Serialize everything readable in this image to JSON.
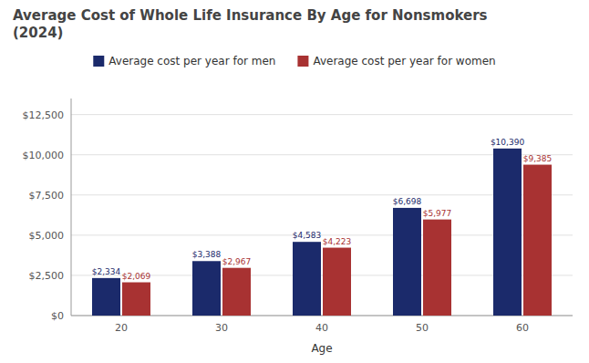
{
  "chart_data": {
    "type": "bar",
    "title": "Average Cost of Whole Life Insurance By Age for Nonsmokers\n(2024)",
    "x_label": "Age",
    "categories": [
      "20",
      "30",
      "40",
      "50",
      "60"
    ],
    "series": [
      {
        "name": "Average cost per year for men",
        "color": "#1b2a6b",
        "values": [
          2334,
          3388,
          4583,
          6698,
          10390
        ],
        "value_labels": [
          "$2,334",
          "$3,388",
          "$4,583",
          "$6,698",
          "$10,390"
        ]
      },
      {
        "name": "Average cost per year for women",
        "color": "#a83232",
        "values": [
          2069,
          2967,
          4223,
          5977,
          9385
        ],
        "value_labels": [
          "$2,069",
          "$2,967",
          "$4,223",
          "$5,977",
          "$9,385"
        ]
      }
    ],
    "ylim": [
      0,
      13500
    ],
    "yticks": [
      {
        "value": 0,
        "label": "$0"
      },
      {
        "value": 2500,
        "label": "$2,500"
      },
      {
        "value": 5000,
        "label": "$5,000"
      },
      {
        "value": 7500,
        "label": "$7,500"
      },
      {
        "value": 10000,
        "label": "$10,000"
      },
      {
        "value": 12500,
        "label": "$12,500"
      }
    ],
    "grid": true,
    "legend": "top",
    "data_labels": true
  }
}
